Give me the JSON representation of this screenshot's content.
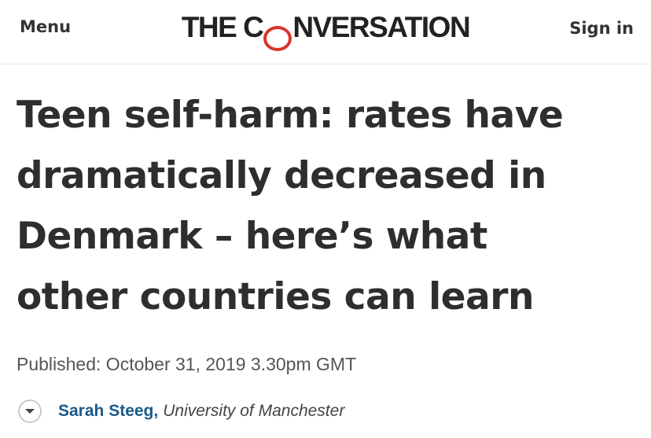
{
  "header": {
    "menu": "Menu",
    "logo": {
      "before": "THE C",
      "mark": "O",
      "after": "NVERSATION"
    },
    "sign_in": "Sign in"
  },
  "article": {
    "title_lines": [
      "Teen self-harm: rates have",
      "dramatically decreased in",
      "Denmark – here’s what",
      "other countries can learn"
    ],
    "published": "Published: October 31, 2019 3.30pm GMT",
    "author": "Sarah Steeg,",
    "affiliation": "University of Manchester"
  }
}
